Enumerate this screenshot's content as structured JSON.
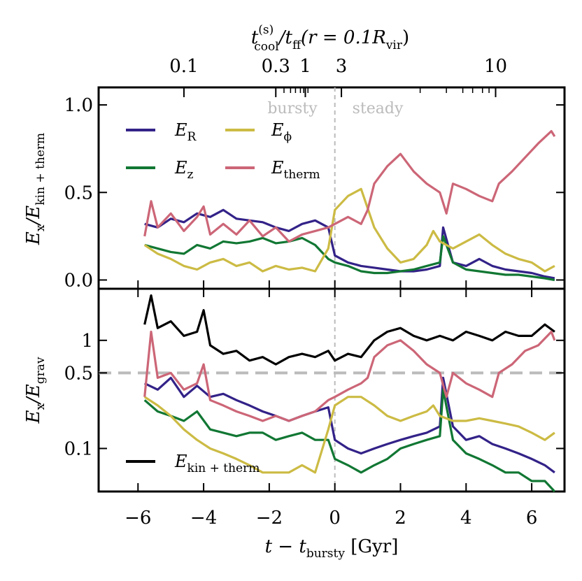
{
  "chart_data": [
    {
      "panel": "top",
      "type": "line",
      "ylabel": "E_x / E_kin+therm",
      "ylabel_main": "E",
      "ylabel_sub1": "x",
      "ylabel_den": "/E",
      "ylabel_sub2": "kin + therm",
      "ylim": [
        -0.05,
        1.1
      ],
      "yticks": [
        0.0,
        0.5,
        1.0
      ],
      "ytick_labels": [
        "0.0",
        "0.5",
        "1.0"
      ],
      "xlim": [
        -7.2,
        7.0
      ],
      "annotations": [
        {
          "text": "bursty",
          "x": -1.0,
          "y": 0.98
        },
        {
          "text": "steady",
          "x": 1.3,
          "y": 0.98
        }
      ],
      "vline_x": 0,
      "series": [
        {
          "name": "E_R",
          "label_main": "E",
          "label_sub": "R",
          "color": "#332288",
          "x": [
            -5.8,
            -5.4,
            -5.0,
            -4.6,
            -4.2,
            -3.8,
            -3.4,
            -3.0,
            -2.6,
            -2.2,
            -1.8,
            -1.4,
            -1.0,
            -0.6,
            -0.2,
            0.0,
            0.4,
            0.8,
            1.2,
            1.6,
            2.0,
            2.4,
            2.8,
            3.2,
            3.3,
            3.6,
            4.0,
            4.4,
            4.8,
            5.2,
            5.6,
            6.0,
            6.4,
            6.7
          ],
          "y": [
            0.32,
            0.3,
            0.35,
            0.33,
            0.38,
            0.36,
            0.4,
            0.35,
            0.34,
            0.33,
            0.3,
            0.28,
            0.32,
            0.34,
            0.3,
            0.14,
            0.1,
            0.08,
            0.07,
            0.06,
            0.05,
            0.05,
            0.06,
            0.08,
            0.3,
            0.1,
            0.08,
            0.12,
            0.08,
            0.06,
            0.05,
            0.04,
            0.02,
            0.01
          ]
        },
        {
          "name": "E_z",
          "label_main": "E",
          "label_sub": "z",
          "color": "#117733",
          "x": [
            -5.8,
            -5.4,
            -5.0,
            -4.6,
            -4.2,
            -3.8,
            -3.4,
            -3.0,
            -2.6,
            -2.2,
            -1.8,
            -1.4,
            -1.0,
            -0.6,
            -0.2,
            0.0,
            0.4,
            0.8,
            1.2,
            1.6,
            2.0,
            2.4,
            2.8,
            3.2,
            3.3,
            3.6,
            4.0,
            4.4,
            4.8,
            5.2,
            5.6,
            6.0,
            6.4,
            6.7
          ],
          "y": [
            0.2,
            0.18,
            0.16,
            0.15,
            0.2,
            0.18,
            0.22,
            0.21,
            0.22,
            0.24,
            0.21,
            0.22,
            0.24,
            0.2,
            0.12,
            0.1,
            0.08,
            0.05,
            0.04,
            0.04,
            0.05,
            0.06,
            0.08,
            0.1,
            0.25,
            0.1,
            0.06,
            0.05,
            0.04,
            0.03,
            0.03,
            0.02,
            0.01,
            0.0
          ]
        },
        {
          "name": "E_phi",
          "label_main": "E",
          "label_sub": "ϕ",
          "color": "#ccbb44",
          "x": [
            -5.8,
            -5.4,
            -5.0,
            -4.6,
            -4.2,
            -3.8,
            -3.4,
            -3.0,
            -2.6,
            -2.2,
            -1.8,
            -1.4,
            -1.0,
            -0.6,
            -0.2,
            0.0,
            0.4,
            0.8,
            1.2,
            1.6,
            2.0,
            2.4,
            2.8,
            3.0,
            3.2,
            3.6,
            4.0,
            4.4,
            4.8,
            5.2,
            5.6,
            6.0,
            6.4,
            6.7
          ],
          "y": [
            0.2,
            0.15,
            0.12,
            0.08,
            0.06,
            0.1,
            0.12,
            0.08,
            0.1,
            0.05,
            0.08,
            0.06,
            0.07,
            0.05,
            0.18,
            0.4,
            0.48,
            0.52,
            0.3,
            0.18,
            0.1,
            0.12,
            0.2,
            0.28,
            0.22,
            0.18,
            0.22,
            0.26,
            0.2,
            0.15,
            0.12,
            0.1,
            0.05,
            0.08
          ]
        },
        {
          "name": "E_therm",
          "label_main": "E",
          "label_sub": "therm",
          "color": "#cc6677",
          "x": [
            -5.8,
            -5.6,
            -5.4,
            -5.0,
            -4.6,
            -4.2,
            -4.0,
            -3.8,
            -3.4,
            -3.0,
            -2.6,
            -2.2,
            -1.8,
            -1.4,
            -1.0,
            -0.6,
            -0.2,
            0.0,
            0.4,
            0.8,
            1.0,
            1.2,
            1.6,
            2.0,
            2.4,
            2.8,
            3.2,
            3.4,
            3.6,
            4.0,
            4.4,
            4.8,
            5.0,
            5.4,
            5.8,
            6.2,
            6.6,
            6.7
          ],
          "y": [
            0.25,
            0.45,
            0.3,
            0.38,
            0.28,
            0.36,
            0.42,
            0.26,
            0.32,
            0.26,
            0.34,
            0.25,
            0.3,
            0.22,
            0.26,
            0.28,
            0.3,
            0.32,
            0.36,
            0.32,
            0.4,
            0.55,
            0.65,
            0.72,
            0.62,
            0.55,
            0.5,
            0.38,
            0.55,
            0.52,
            0.48,
            0.45,
            0.55,
            0.62,
            0.7,
            0.78,
            0.85,
            0.82
          ]
        }
      ]
    },
    {
      "panel": "bottom",
      "type": "line",
      "yscale": "log",
      "ylabel": "E_x / E_grav",
      "ylabel_main": "E",
      "ylabel_sub1": "x",
      "ylabel_den": "/E",
      "ylabel_sub2": "grav",
      "ylim": [
        0.04,
        3.0
      ],
      "yticks": [
        0.1,
        0.5,
        1
      ],
      "ytick_labels": [
        "0.1",
        "0.5",
        "1"
      ],
      "hline_y": 0.5,
      "vline_x": 0,
      "xlabel_main": "t − t",
      "xlabel_sub": "bursty",
      "xlabel_unit": " [Gyr]",
      "xticks": [
        -6,
        -4,
        -2,
        0,
        2,
        4,
        6
      ],
      "xtick_labels": [
        "−6",
        "−4",
        "−2",
        "0",
        "2",
        "4",
        "6"
      ],
      "legend": [
        {
          "label_main": "E",
          "label_sub": "kin + therm",
          "color": "#000000"
        }
      ],
      "series": [
        {
          "name": "E_kin+therm",
          "color": "#000000",
          "x": [
            -5.8,
            -5.6,
            -5.4,
            -5.0,
            -4.6,
            -4.2,
            -4.0,
            -3.8,
            -3.4,
            -3.0,
            -2.6,
            -2.2,
            -1.8,
            -1.4,
            -1.0,
            -0.6,
            -0.2,
            0.0,
            0.4,
            0.8,
            1.2,
            1.6,
            2.0,
            2.4,
            2.8,
            3.2,
            3.6,
            4.0,
            4.4,
            4.8,
            5.2,
            5.6,
            6.0,
            6.4,
            6.7
          ],
          "y": [
            1.4,
            2.6,
            1.3,
            1.5,
            1.1,
            1.2,
            1.9,
            0.9,
            0.75,
            0.8,
            0.65,
            0.7,
            0.6,
            0.7,
            0.75,
            0.7,
            0.8,
            0.65,
            0.75,
            0.7,
            1.0,
            1.2,
            1.3,
            1.1,
            1.0,
            1.1,
            1.0,
            1.2,
            1.1,
            1.0,
            1.2,
            1.1,
            1.1,
            1.4,
            1.2
          ]
        },
        {
          "name": "E_R",
          "color": "#332288",
          "x": [
            -5.8,
            -5.4,
            -5.0,
            -4.6,
            -4.2,
            -3.8,
            -3.4,
            -3.0,
            -2.6,
            -2.2,
            -1.8,
            -1.4,
            -1.0,
            -0.6,
            -0.2,
            0.0,
            0.4,
            0.8,
            1.2,
            1.6,
            2.0,
            2.4,
            2.8,
            3.2,
            3.3,
            3.6,
            4.0,
            4.4,
            4.8,
            5.2,
            5.6,
            6.0,
            6.4,
            6.7
          ],
          "y": [
            0.4,
            0.35,
            0.45,
            0.3,
            0.38,
            0.3,
            0.32,
            0.28,
            0.25,
            0.22,
            0.2,
            0.18,
            0.2,
            0.22,
            0.24,
            0.12,
            0.1,
            0.09,
            0.1,
            0.11,
            0.12,
            0.13,
            0.14,
            0.16,
            0.45,
            0.16,
            0.12,
            0.13,
            0.11,
            0.1,
            0.09,
            0.08,
            0.07,
            0.06
          ]
        },
        {
          "name": "E_z",
          "color": "#117733",
          "x": [
            -5.8,
            -5.4,
            -5.0,
            -4.6,
            -4.2,
            -3.8,
            -3.4,
            -3.0,
            -2.6,
            -2.2,
            -1.8,
            -1.4,
            -1.0,
            -0.6,
            -0.2,
            0.0,
            0.4,
            0.8,
            1.2,
            1.6,
            2.0,
            2.4,
            2.8,
            3.2,
            3.3,
            3.6,
            4.0,
            4.4,
            4.8,
            5.2,
            5.6,
            6.0,
            6.4,
            6.7
          ],
          "y": [
            0.28,
            0.22,
            0.2,
            0.18,
            0.22,
            0.15,
            0.14,
            0.13,
            0.14,
            0.14,
            0.12,
            0.13,
            0.14,
            0.12,
            0.12,
            0.08,
            0.07,
            0.06,
            0.07,
            0.08,
            0.1,
            0.11,
            0.12,
            0.13,
            0.35,
            0.12,
            0.09,
            0.08,
            0.07,
            0.06,
            0.06,
            0.05,
            0.05,
            0.04
          ]
        },
        {
          "name": "E_phi",
          "color": "#ccbb44",
          "x": [
            -5.8,
            -5.4,
            -5.0,
            -4.6,
            -4.2,
            -3.8,
            -3.4,
            -3.0,
            -2.6,
            -2.2,
            -1.8,
            -1.4,
            -1.0,
            -0.6,
            -0.2,
            0.0,
            0.4,
            0.8,
            1.2,
            1.6,
            2.0,
            2.4,
            2.8,
            3.0,
            3.2,
            3.6,
            4.0,
            4.4,
            4.8,
            5.2,
            5.6,
            6.0,
            6.4,
            6.7
          ],
          "y": [
            0.3,
            0.25,
            0.2,
            0.15,
            0.12,
            0.1,
            0.09,
            0.08,
            0.07,
            0.06,
            0.06,
            0.06,
            0.07,
            0.06,
            0.15,
            0.25,
            0.3,
            0.3,
            0.25,
            0.2,
            0.18,
            0.2,
            0.22,
            0.25,
            0.2,
            0.18,
            0.18,
            0.19,
            0.18,
            0.17,
            0.16,
            0.14,
            0.12,
            0.14
          ]
        },
        {
          "name": "E_therm",
          "color": "#cc6677",
          "x": [
            -5.8,
            -5.6,
            -5.4,
            -5.0,
            -4.6,
            -4.2,
            -4.0,
            -3.8,
            -3.4,
            -3.0,
            -2.6,
            -2.2,
            -1.8,
            -1.4,
            -1.0,
            -0.6,
            -0.2,
            0.0,
            0.4,
            0.8,
            1.0,
            1.2,
            1.6,
            2.0,
            2.4,
            2.8,
            3.2,
            3.4,
            3.6,
            4.0,
            4.4,
            4.8,
            5.0,
            5.4,
            5.8,
            6.2,
            6.6,
            6.7
          ],
          "y": [
            0.3,
            1.2,
            0.45,
            0.5,
            0.35,
            0.4,
            0.6,
            0.28,
            0.25,
            0.22,
            0.2,
            0.18,
            0.2,
            0.18,
            0.2,
            0.22,
            0.28,
            0.3,
            0.35,
            0.4,
            0.45,
            0.7,
            0.9,
            1.0,
            0.8,
            0.6,
            0.5,
            0.3,
            0.5,
            0.4,
            0.35,
            0.3,
            0.5,
            0.6,
            0.8,
            0.9,
            1.2,
            1.0
          ]
        }
      ]
    },
    {
      "panel": "top-secondary-axis",
      "type": "axis",
      "xlabel_main": "t",
      "xlabel_sup": "(s)",
      "xlabel_sub": "cool",
      "xlabel_mid": "/t",
      "xlabel_sub2": "ff",
      "xlabel_tail": "(r = 0.1R",
      "xlabel_sub3": "vir",
      "xlabel_end": ")",
      "ticks_at_bottom_x": [
        -4.6,
        -1.8,
        -0.9,
        0.2,
        4.9
      ],
      "tick_labels": [
        "0.1",
        "0.3",
        "1",
        "3",
        "10"
      ],
      "minor_ticks_at_bottom_x": [
        -1.55,
        -1.35,
        -1.2,
        -1.05,
        -0.95,
        -0.82,
        2.6,
        3.4,
        3.9,
        4.2,
        4.5,
        4.7
      ]
    }
  ]
}
